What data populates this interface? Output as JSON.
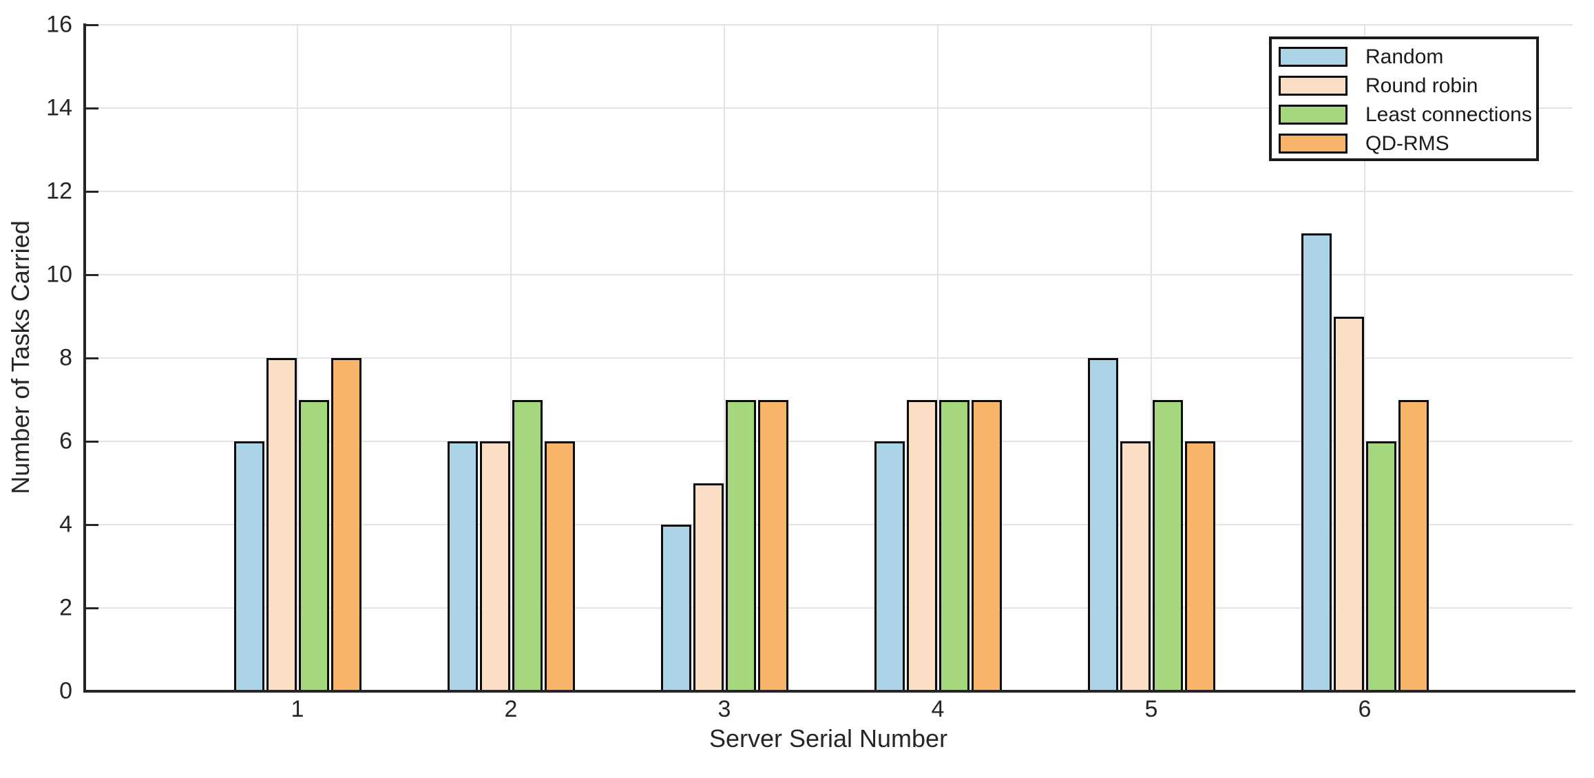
{
  "figure": {
    "background": "#ffffff",
    "axis_color": "#262626",
    "grid_color": "#e3e3e3",
    "bar_edge_color": "#0b0b0b"
  },
  "chart_data": {
    "type": "bar",
    "title": "",
    "xlabel": "Server Serial Number",
    "ylabel": "Number of Tasks Carried",
    "categories": [
      "1",
      "2",
      "3",
      "4",
      "5",
      "6"
    ],
    "yticks": [
      0,
      2,
      4,
      6,
      8,
      10,
      12,
      14,
      16
    ],
    "ylim": [
      0,
      16
    ],
    "xlim": [
      0,
      7
    ],
    "grid": true,
    "legend_position": "top-right",
    "series": [
      {
        "name": "Random",
        "color": "#ABD4E6",
        "values": [
          6,
          6,
          4,
          6,
          8,
          11
        ]
      },
      {
        "name": "Round robin",
        "color": "#FBDFC4",
        "values": [
          8,
          6,
          5,
          7,
          6,
          9
        ]
      },
      {
        "name": "Least connections",
        "color": "#A5D87D",
        "values": [
          7,
          7,
          7,
          7,
          7,
          6
        ]
      },
      {
        "name": "QD-RMS",
        "color": "#F8B468",
        "values": [
          8,
          6,
          7,
          7,
          6,
          7
        ]
      }
    ]
  }
}
